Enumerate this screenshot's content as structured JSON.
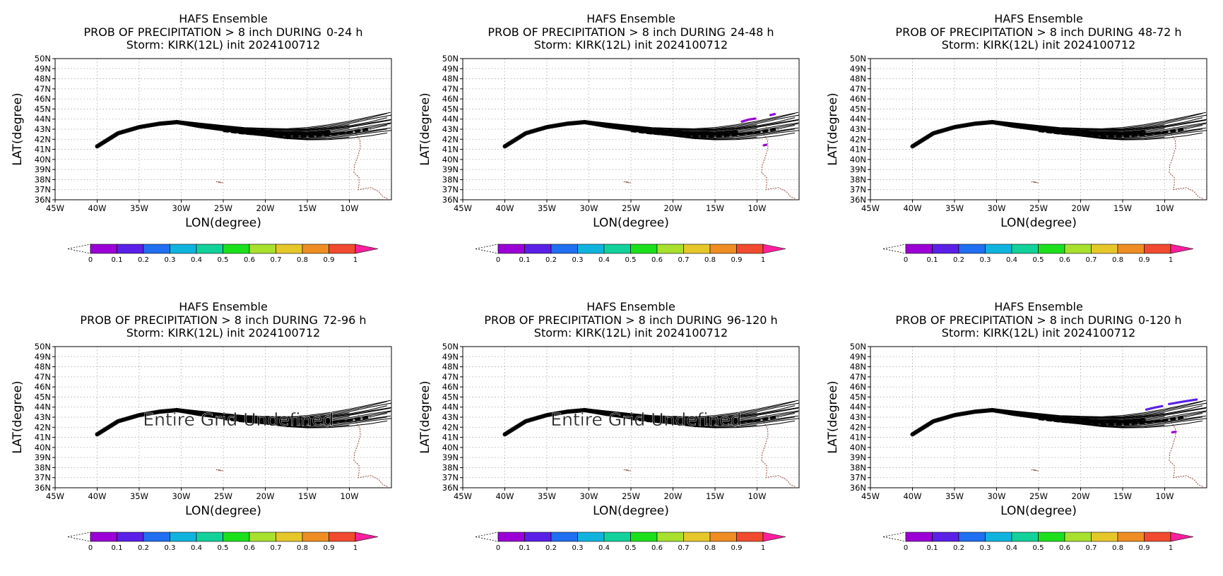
{
  "chart_data": {
    "type": "map-probability-panels",
    "title_line1": "HAFS Ensemble",
    "title_line2_prefix": "PROB OF PRECIPITATION > 8 inch DURING",
    "title_line3": "Storm: KIRK(12L) init 2024100712",
    "xlabel": "LON(degree)",
    "ylabel": "LAT(degree)",
    "xlim": [
      -45,
      -5
    ],
    "ylim": [
      36,
      50
    ],
    "x_ticks": [
      -45,
      -40,
      -35,
      -30,
      -25,
      -20,
      -15,
      -10
    ],
    "x_tick_labels": [
      "45W",
      "40W",
      "35W",
      "30W",
      "25W",
      "20W",
      "15W",
      "10W"
    ],
    "y_ticks": [
      36,
      37,
      38,
      39,
      40,
      41,
      42,
      43,
      44,
      45,
      46,
      47,
      48,
      49,
      50
    ],
    "y_tick_labels": [
      "36N",
      "37N",
      "38N",
      "39N",
      "40N",
      "41N",
      "42N",
      "43N",
      "44N",
      "45N",
      "46N",
      "47N",
      "48N",
      "49N",
      "50N"
    ],
    "grid": true,
    "colorbar": {
      "levels": [
        0,
        0.1,
        0.2,
        0.3,
        0.4,
        0.5,
        0.6,
        0.7,
        0.8,
        0.9,
        1
      ],
      "level_labels": [
        "0",
        "0.1",
        "0.2",
        "0.3",
        "0.4",
        "0.5",
        "0.6",
        "0.7",
        "0.8",
        "0.9",
        "1"
      ],
      "colors": [
        "#9a00d6",
        "#5a20e8",
        "#1f6ff0",
        "#0fb4de",
        "#13d19b",
        "#1ce01c",
        "#a8e02d",
        "#e6c72a",
        "#ef8d22",
        "#f24a2e"
      ],
      "over_color": "#ff1f9e"
    },
    "track_color": "#000000",
    "coast_color": "#8b4a3a",
    "track_mean": [
      [
        -40,
        41.3
      ],
      [
        -37.5,
        42.6
      ],
      [
        -35,
        43.2
      ],
      [
        -32.5,
        43.55
      ],
      [
        -30.5,
        43.7
      ],
      [
        -28,
        43.4
      ],
      [
        -25,
        43.1
      ],
      [
        -22.5,
        42.85
      ],
      [
        -20,
        42.7
      ],
      [
        -17.5,
        42.55
      ],
      [
        -15,
        42.55
      ],
      [
        -12.5,
        42.7
      ],
      [
        -10,
        42.95
      ],
      [
        -7.5,
        43.3
      ],
      [
        -5.5,
        43.65
      ]
    ],
    "track_spread_deg": [
      0,
      0.06,
      0.1,
      0.12,
      0.14,
      0.2,
      0.25,
      0.32,
      0.42,
      0.52,
      0.62,
      0.72,
      0.82,
      0.92,
      1.02
    ],
    "coastline": [
      [
        -8.9,
        43.2
      ],
      [
        -9.2,
        42.5
      ],
      [
        -8.75,
        41.9
      ],
      [
        -8.7,
        41.2
      ],
      [
        -9.0,
        40.3
      ],
      [
        -9.4,
        39.4
      ],
      [
        -9.45,
        38.7
      ],
      [
        -8.85,
        38.2
      ],
      [
        -8.85,
        37.6
      ],
      [
        -8.95,
        37.0
      ],
      [
        -8.3,
        37.1
      ],
      [
        -7.4,
        37.2
      ],
      [
        -6.5,
        36.8
      ],
      [
        -6.0,
        36.3
      ],
      [
        -5.4,
        36.1
      ]
    ],
    "islands": [
      [
        -25.6,
        37.8
      ],
      [
        -25.3,
        37.75
      ]
    ],
    "panels": [
      {
        "period": "0-24 h",
        "overlay": "",
        "prob_features": []
      },
      {
        "period": "24-48 h",
        "overlay": "",
        "prob_features": [
          {
            "points": [
              [
                -11.8,
                43.75
              ],
              [
                -11.0,
                43.95
              ],
              [
                -10.2,
                44.05
              ]
            ],
            "prob": 0.05
          },
          {
            "points": [
              [
                -8.4,
                44.4
              ],
              [
                -7.9,
                44.5
              ]
            ],
            "prob": 0.05
          },
          {
            "points": [
              [
                -9.2,
                41.4
              ],
              [
                -8.9,
                41.45
              ]
            ],
            "prob": 0.05
          }
        ]
      },
      {
        "period": "48-72 h",
        "overlay": "",
        "prob_features": []
      },
      {
        "period": "72-96 h",
        "overlay": "Entire Grid Undefined",
        "prob_features": []
      },
      {
        "period": "96-120 h",
        "overlay": "Entire Grid Undefined",
        "prob_features": []
      },
      {
        "period": "0-120 h",
        "overlay": "",
        "prob_features": [
          {
            "points": [
              [
                -12.2,
                43.75
              ],
              [
                -11.2,
                43.95
              ],
              [
                -10.3,
                44.1
              ]
            ],
            "prob": 0.15
          },
          {
            "points": [
              [
                -9.5,
                44.3
              ],
              [
                -7.8,
                44.55
              ],
              [
                -6.2,
                44.75
              ]
            ],
            "prob": 0.15
          },
          {
            "points": [
              [
                -9.1,
                41.5
              ],
              [
                -8.7,
                41.55
              ]
            ],
            "prob": 0.05
          }
        ]
      }
    ]
  }
}
